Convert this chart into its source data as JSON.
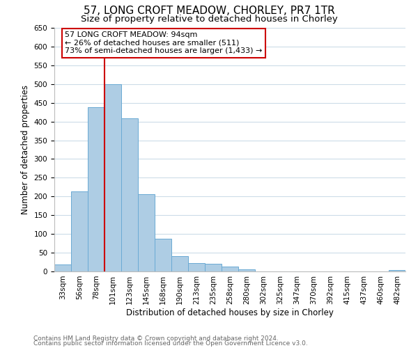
{
  "title": "57, LONG CROFT MEADOW, CHORLEY, PR7 1TR",
  "subtitle": "Size of property relative to detached houses in Chorley",
  "xlabel": "Distribution of detached houses by size in Chorley",
  "ylabel": "Number of detached properties",
  "bin_labels": [
    "33sqm",
    "56sqm",
    "78sqm",
    "101sqm",
    "123sqm",
    "145sqm",
    "168sqm",
    "190sqm",
    "213sqm",
    "235sqm",
    "258sqm",
    "280sqm",
    "302sqm",
    "325sqm",
    "347sqm",
    "370sqm",
    "392sqm",
    "415sqm",
    "437sqm",
    "460sqm",
    "482sqm"
  ],
  "bar_heights": [
    18,
    213,
    438,
    500,
    408,
    207,
    87,
    40,
    22,
    20,
    13,
    5,
    0,
    0,
    0,
    0,
    0,
    0,
    0,
    0,
    4
  ],
  "bar_color": "#aecde4",
  "bar_edge_color": "#6aaad4",
  "vline_color": "#cc0000",
  "annotation_text": "57 LONG CROFT MEADOW: 94sqm\n← 26% of detached houses are smaller (511)\n73% of semi-detached houses are larger (1,433) →",
  "annotation_box_color": "#ffffff",
  "annotation_border_color": "#cc0000",
  "ylim": [
    0,
    650
  ],
  "yticks": [
    0,
    50,
    100,
    150,
    200,
    250,
    300,
    350,
    400,
    450,
    500,
    550,
    600,
    650
  ],
  "footer1": "Contains HM Land Registry data © Crown copyright and database right 2024.",
  "footer2": "Contains public sector information licensed under the Open Government Licence v3.0.",
  "bg_color": "#ffffff",
  "grid_color": "#ccdce8",
  "title_fontsize": 11,
  "subtitle_fontsize": 9.5,
  "axis_label_fontsize": 8.5,
  "tick_fontsize": 7.5,
  "annotation_fontsize": 8,
  "footer_fontsize": 6.5
}
